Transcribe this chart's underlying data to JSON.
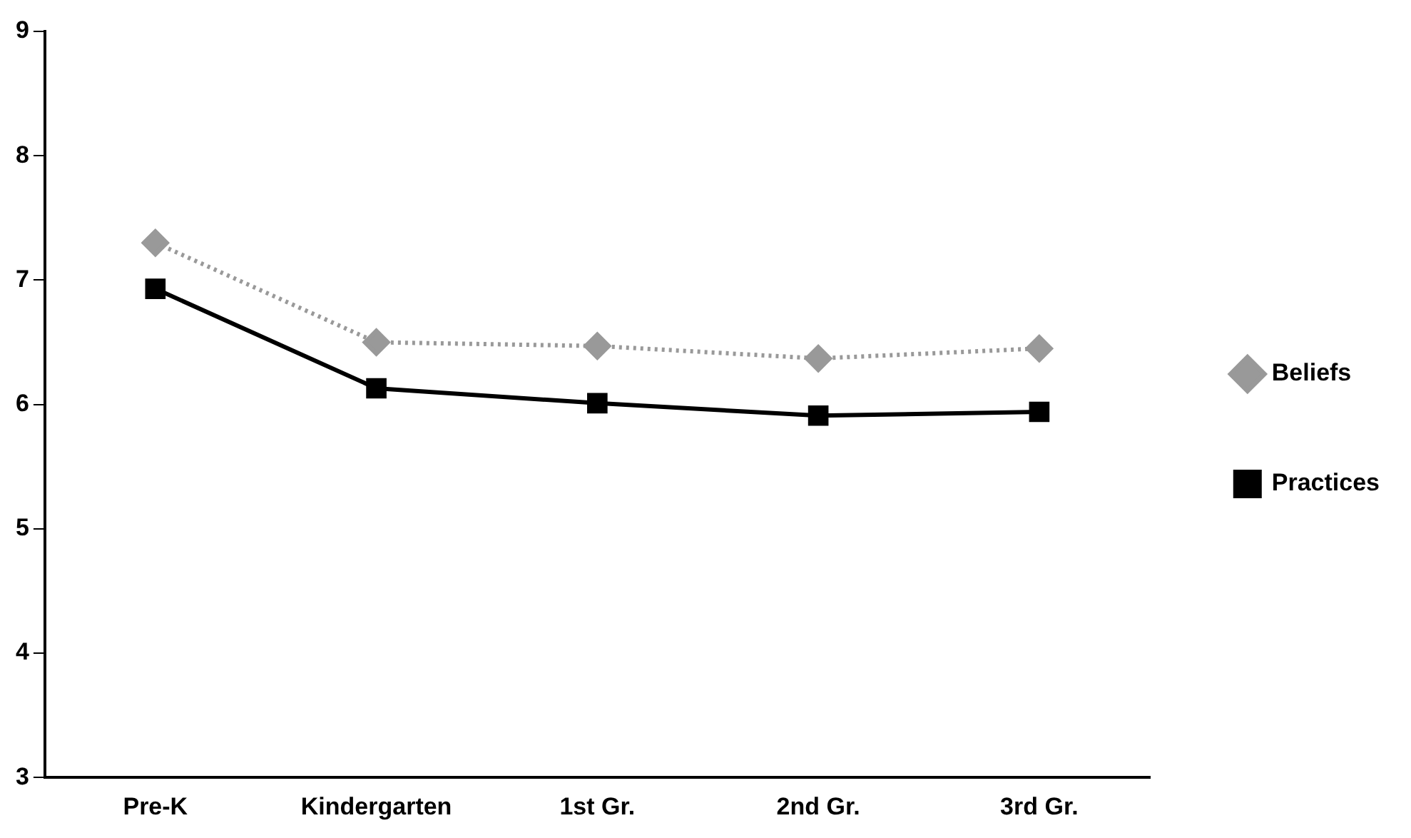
{
  "chart_data": {
    "type": "line",
    "categories": [
      "Pre-K",
      "Kindergarten",
      "1st Gr.",
      "2nd Gr.",
      "3rd Gr."
    ],
    "series": [
      {
        "name": "Beliefs",
        "color": "#999999",
        "marker": "diamond",
        "line_style": "dotted",
        "values": [
          7.3,
          6.5,
          6.47,
          6.37,
          6.45
        ]
      },
      {
        "name": "Practices",
        "color": "#000000",
        "marker": "square",
        "line_style": "solid",
        "values": [
          6.93,
          6.13,
          6.01,
          5.91,
          5.94
        ]
      }
    ],
    "ylim": [
      3,
      9
    ],
    "yticks": [
      3,
      4,
      5,
      6,
      7,
      8,
      9
    ],
    "grid": false,
    "legend": "right"
  }
}
